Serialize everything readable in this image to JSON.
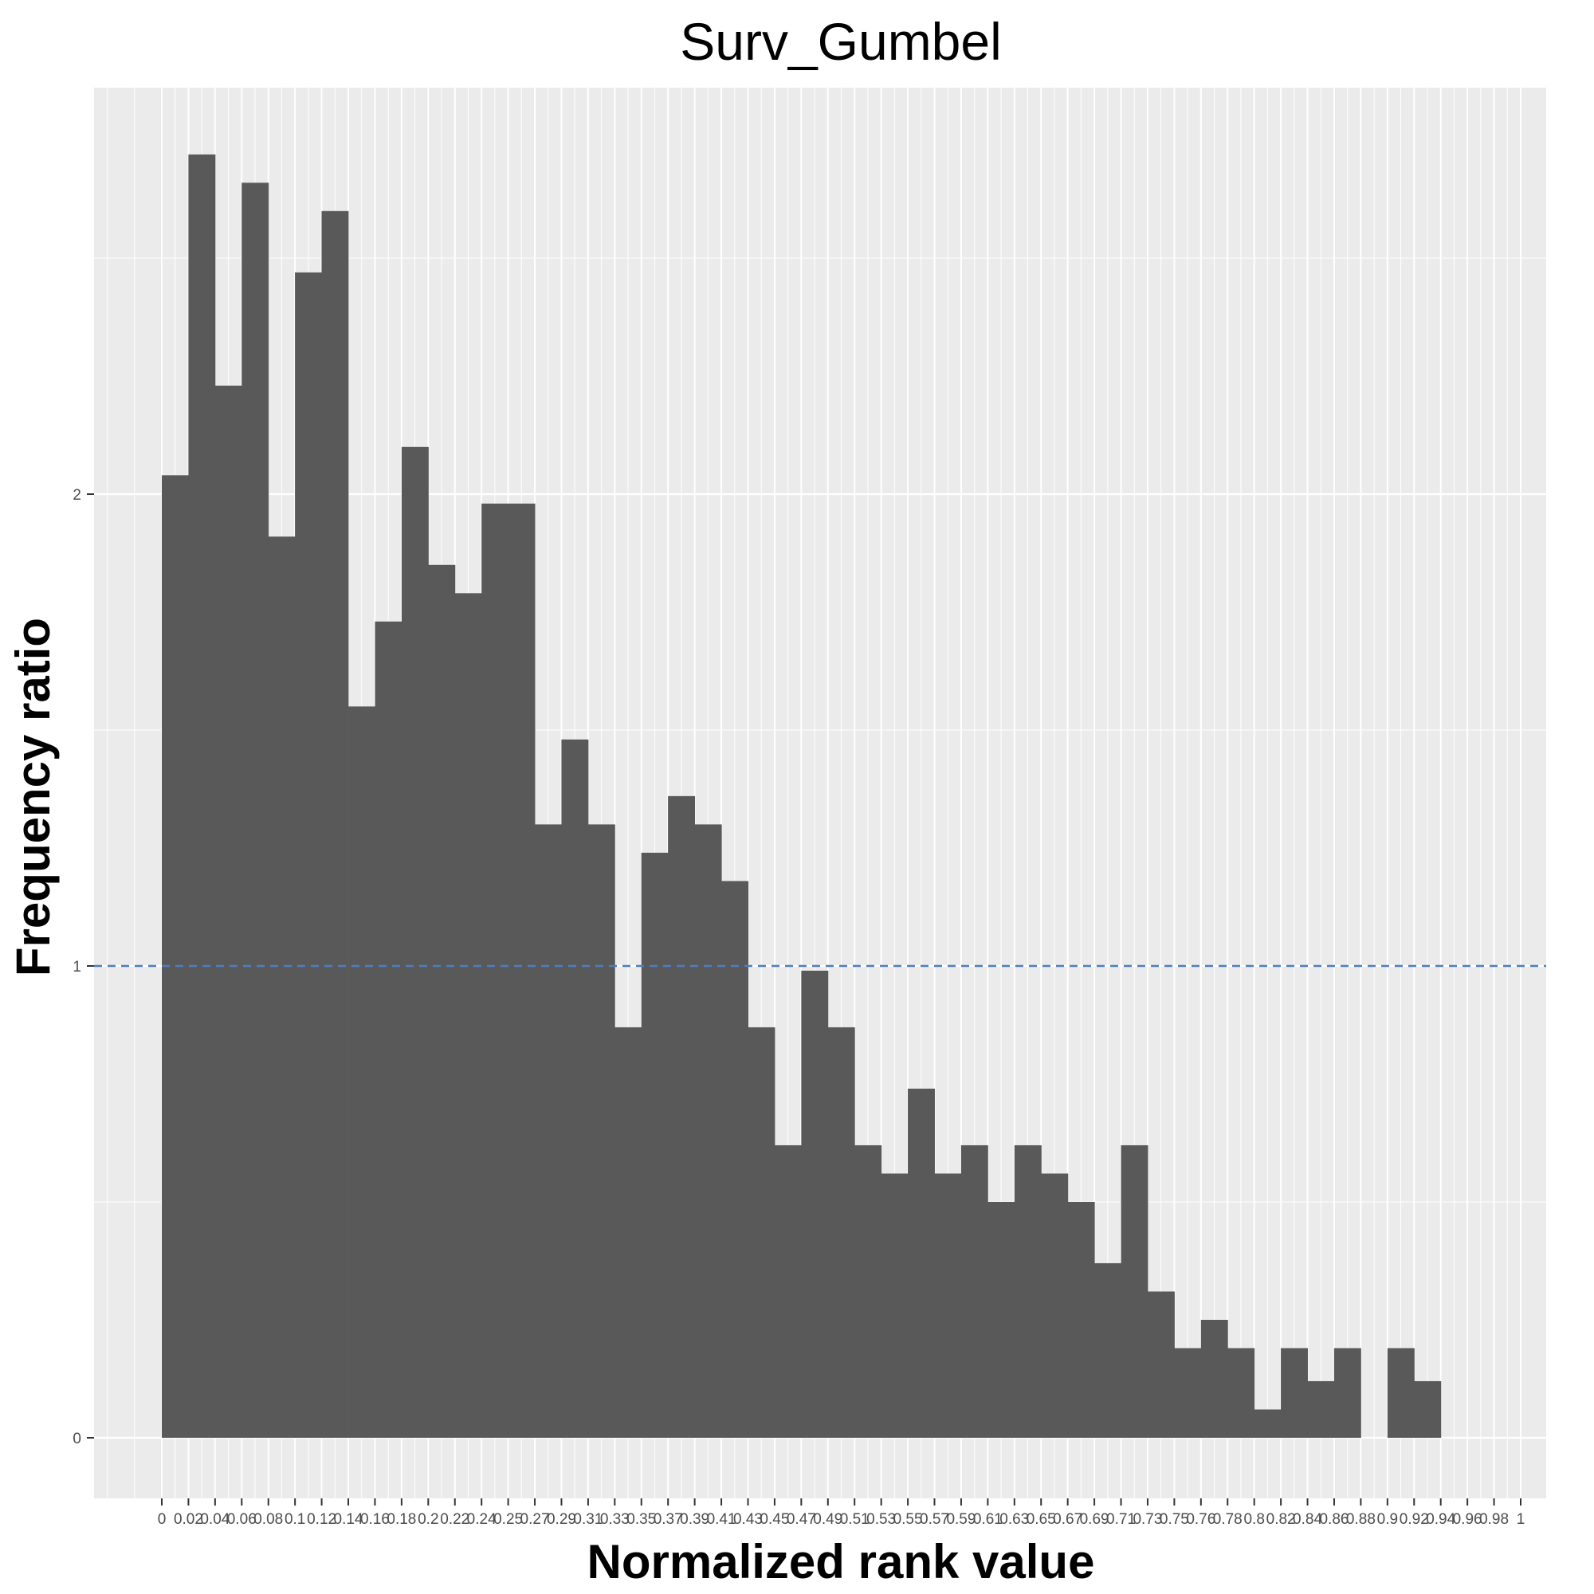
{
  "chart_data": {
    "type": "bar",
    "title": "Surv_Gumbel",
    "xlabel": "Normalized rank value",
    "ylabel": "Frequency ratio",
    "xlim": [
      0,
      1
    ],
    "ylim": [
      0,
      2.75
    ],
    "y_ticks": [
      "0",
      "1",
      "2"
    ],
    "y_tick_values": [
      0,
      1,
      2
    ],
    "x_tick_labels": [
      "0",
      "0.02",
      "0.04",
      "0.06",
      "0.08",
      "0.1",
      "0.12",
      "0.14",
      "0.16",
      "0.18",
      "0.2",
      "0.22",
      "0.24",
      "0.25",
      "0.27",
      "0.29",
      "0.31",
      "0.33",
      "0.35",
      "0.37",
      "0.39",
      "0.41",
      "0.43",
      "0.45",
      "0.47",
      "0.49",
      "0.51",
      "0.53",
      "0.55",
      "0.57",
      "0.59",
      "0.61",
      "0.63",
      "0.65",
      "0.67",
      "0.69",
      "0.71",
      "0.73",
      "0.75",
      "0.76",
      "0.78",
      "0.8",
      "0.82",
      "0.84",
      "0.86",
      "0.88",
      "0.9",
      "0.92",
      "0.94",
      "0.96",
      "0.98",
      "1"
    ],
    "bin_width": 0.0196,
    "bin_starts": [
      0,
      0.0196,
      0.0392,
      0.0588,
      0.0784,
      0.098,
      0.1176,
      0.1373,
      0.1569,
      0.1765,
      0.1961,
      0.2157,
      0.2353,
      0.2549,
      0.2745,
      0.2941,
      0.3137,
      0.3333,
      0.3529,
      0.3725,
      0.3922,
      0.4118,
      0.4314,
      0.451,
      0.4706,
      0.4902,
      0.5098,
      0.5294,
      0.549,
      0.5686,
      0.5882,
      0.6078,
      0.6275,
      0.6471,
      0.6667,
      0.6863,
      0.7059,
      0.7255,
      0.7451,
      0.7647,
      0.7843,
      0.8039,
      0.8235,
      0.8431,
      0.8627,
      0.8824,
      0.902,
      0.9216
    ],
    "values": [
      2.04,
      2.72,
      2.23,
      2.66,
      1.91,
      2.47,
      2.6,
      1.55,
      1.73,
      2.1,
      1.85,
      1.79,
      1.98,
      1.98,
      1.3,
      1.48,
      1.3,
      0.87,
      1.24,
      1.36,
      1.3,
      1.18,
      0.87,
      0.62,
      0.99,
      0.87,
      0.62,
      0.56,
      0.74,
      0.56,
      0.62,
      0.5,
      0.62,
      0.56,
      0.5,
      0.37,
      0.62,
      0.31,
      0.19,
      0.25,
      0.19,
      0.06,
      0.19,
      0.12,
      0.19,
      0.0,
      0.19,
      0.12
    ],
    "reference_line": {
      "y": 1,
      "style": "dashed",
      "color": "#4a7fc1"
    },
    "grid": true,
    "colors": {
      "bar": "#595959",
      "panel": "#ebebeb",
      "grid": "#ffffff"
    }
  }
}
